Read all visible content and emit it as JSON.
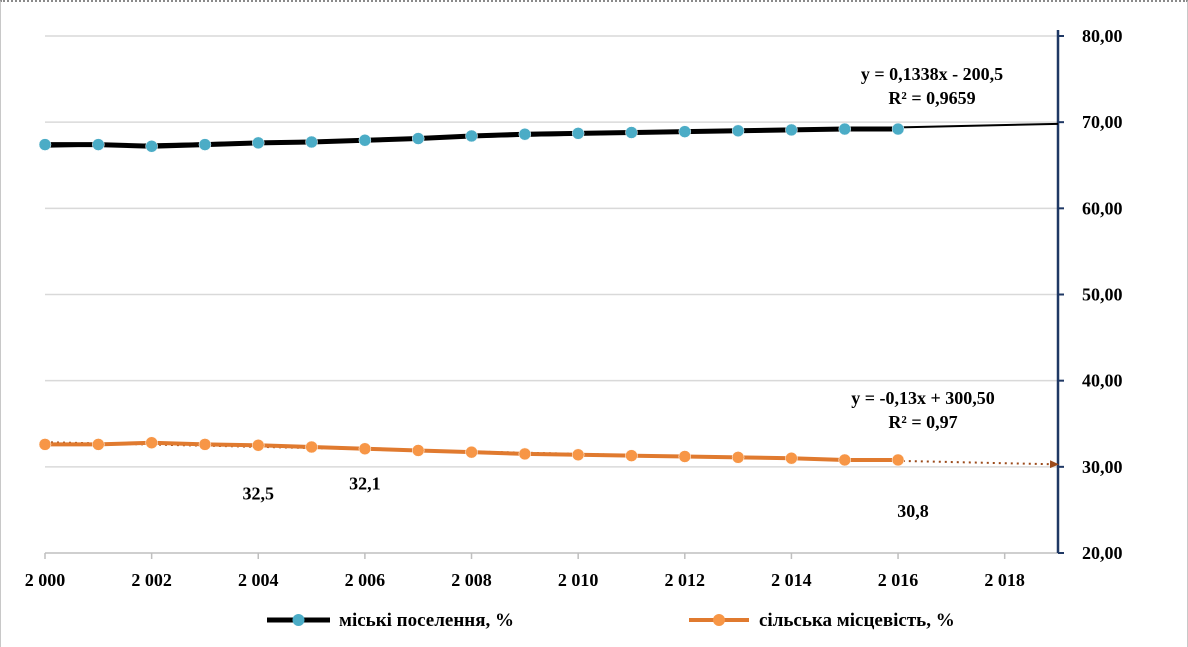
{
  "chart_data": {
    "type": "line",
    "x": [
      2000,
      2001,
      2002,
      2003,
      2004,
      2005,
      2006,
      2007,
      2008,
      2009,
      2010,
      2011,
      2012,
      2013,
      2014,
      2015,
      2016
    ],
    "x_ticks": [
      "2 000",
      "2 002",
      "2 004",
      "2 006",
      "2 008",
      "2 010",
      "2 012",
      "2 014",
      "2 016",
      "2 018"
    ],
    "y_ticks": [
      "80,00",
      "70,00",
      "60,00",
      "50,00",
      "40,00",
      "30,00",
      "20,00"
    ],
    "xlim": [
      2000,
      2019
    ],
    "ylim": [
      20,
      80
    ],
    "y_axis_side": "right",
    "grid": true,
    "legend_position": "bottom",
    "series": [
      {
        "name": "міські поселення, %",
        "color": "#4bacc6",
        "line_color": "#000000",
        "values": [
          67.4,
          67.4,
          67.2,
          67.4,
          67.6,
          67.7,
          67.9,
          68.1,
          68.4,
          68.6,
          68.7,
          68.8,
          68.9,
          69.0,
          69.1,
          69.2,
          69.2
        ],
        "trendline": {
          "equation": "y = 0,1338x - 200,5",
          "r2": "R² = 0,9659",
          "from": 2000,
          "to": 2019,
          "style": "solid"
        }
      },
      {
        "name": "сільська місцевість, %",
        "color": "#f79646",
        "line_color": "#e07a2f",
        "values": [
          32.6,
          32.6,
          32.8,
          32.6,
          32.5,
          32.3,
          32.1,
          31.9,
          31.7,
          31.5,
          31.4,
          31.3,
          31.2,
          31.1,
          31.0,
          30.8,
          30.8
        ],
        "trendline": {
          "equation": "y = -0,13x + 300,50",
          "r2": "R² = 0,97",
          "from": 2000,
          "to": 2019,
          "style": "dotted-arrow"
        }
      }
    ],
    "data_labels": [
      {
        "series": 1,
        "x": 2004,
        "text": "32,5"
      },
      {
        "series": 1,
        "x": 2006,
        "text": "32,1"
      },
      {
        "series": 1,
        "x": 2016,
        "text": "30,8"
      }
    ]
  }
}
